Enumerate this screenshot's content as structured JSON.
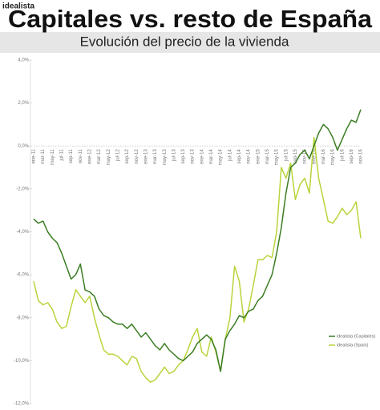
{
  "brand": "idealista",
  "chart_data": {
    "type": "line",
    "title": "Capitales vs. resto de España",
    "subtitle": "Evolución del precio de la vivienda",
    "categories": [
      "ene-11",
      null,
      "mar-11",
      null,
      "may-11",
      null,
      "jul-11",
      null,
      "sep-11",
      null,
      "nov-11",
      null,
      "ene-12",
      null,
      "mar-12",
      null,
      "may-12",
      null,
      "jul-12",
      null,
      "sep-12",
      null,
      "nov-12",
      null,
      "ene-13",
      null,
      "mar-13",
      null,
      "may-13",
      null,
      "jul-13",
      null,
      "sep-13",
      null,
      "nov-13",
      null,
      "ene-14",
      null,
      "mar-14",
      null,
      "may-14",
      null,
      "jul-14",
      null,
      "sep-14",
      null,
      "nov-14",
      null,
      "ene-15",
      null,
      "mar-15",
      null,
      "may-15",
      null,
      "jul-15",
      null,
      "sep-15",
      null,
      "nov-15",
      null,
      "ene-16",
      null,
      "mar-16",
      null,
      "may-16",
      null,
      "jul-16",
      null,
      "sep-16",
      null,
      "nov-16"
    ],
    "series": [
      {
        "name": "idealista (Capitales)",
        "color": "#3a7d22",
        "values": [
          -3.4,
          -3.6,
          -3.5,
          -4.0,
          -4.3,
          -4.5,
          -5.0,
          -5.6,
          -6.2,
          -6.0,
          -5.5,
          -6.7,
          -6.8,
          -7.0,
          -7.6,
          -7.9,
          -8.0,
          -8.2,
          -8.3,
          -8.3,
          -8.5,
          -8.3,
          -8.6,
          -8.9,
          -8.7,
          -9.0,
          -9.3,
          -9.5,
          -9.2,
          -9.5,
          -9.7,
          -9.9,
          -10.0,
          -9.8,
          -9.6,
          -9.2,
          -9.0,
          -8.8,
          -9.0,
          -9.5,
          -10.5,
          -9.0,
          -8.6,
          -8.3,
          -7.9,
          -8.0,
          -7.7,
          -7.6,
          -7.2,
          -7.0,
          -6.5,
          -6.0,
          -5.0,
          -3.8,
          -2.2,
          -1.0,
          -0.8,
          -0.4,
          -0.2,
          -0.6,
          0.0,
          0.6,
          1.0,
          0.8,
          0.4,
          -0.2,
          0.3,
          0.8,
          1.2,
          1.1,
          1.7
        ]
      },
      {
        "name": "idealista (Spain)",
        "color": "#b8d43a",
        "values": [
          -6.3,
          -7.2,
          -7.4,
          -7.3,
          -7.6,
          -8.2,
          -8.5,
          -8.4,
          -7.5,
          -6.7,
          -7.0,
          -7.3,
          -7.0,
          -8.0,
          -8.8,
          -9.5,
          -9.7,
          -9.7,
          -9.8,
          -10.0,
          -10.2,
          -9.8,
          -9.9,
          -10.5,
          -10.8,
          -11.0,
          -10.9,
          -10.6,
          -10.3,
          -10.6,
          -10.5,
          -10.2,
          -10.0,
          -9.5,
          -8.9,
          -8.5,
          -9.6,
          -9.8,
          -8.9,
          -9.6,
          -10.5,
          -9.0,
          -8.0,
          -5.6,
          -6.3,
          -8.2,
          -7.6,
          -6.5,
          -5.3,
          -5.3,
          -5.1,
          -5.2,
          -4.0,
          -1.0,
          -1.5,
          -0.8,
          -2.5,
          -1.8,
          -1.5,
          -2.2,
          0.4,
          -1.5,
          -2.5,
          -3.5,
          -3.6,
          -3.3,
          -2.9,
          -3.2,
          -3.0,
          -2.6,
          -4.3
        ]
      }
    ],
    "ylim": [
      -12,
      4
    ],
    "yticks": [
      {
        "value": 4,
        "label": "4,0%"
      },
      {
        "value": 2,
        "label": "2,0%"
      },
      {
        "value": 0,
        "label": "0,0%"
      },
      {
        "value": -2,
        "label": "-2,0%"
      },
      {
        "value": -4,
        "label": "-4,0%"
      },
      {
        "value": -6,
        "label": "-6,0%"
      },
      {
        "value": -8,
        "label": "-8,0%"
      },
      {
        "value": -10,
        "label": "-10,0%"
      },
      {
        "value": -12,
        "label": "-12,0%"
      }
    ],
    "legend": "lower right"
  }
}
